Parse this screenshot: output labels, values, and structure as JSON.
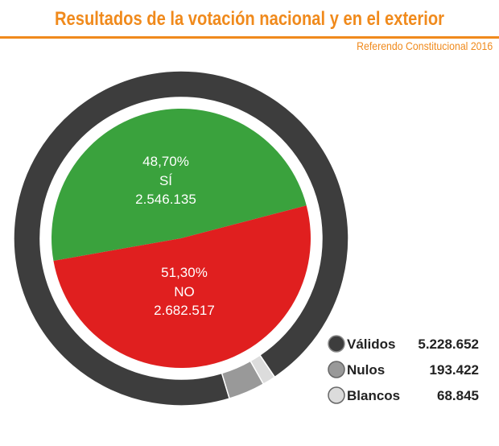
{
  "header": {
    "title": "Resultados de la votación nacional y en el exterior",
    "subtitle": "Referendo Constitucional 2016"
  },
  "colors": {
    "accent": "#f08a1c",
    "si": "#3aa23d",
    "no": "#e01f1f",
    "validos": "#3d3d3d",
    "nulos": "#999999",
    "blancos": "#dcdcdc"
  },
  "chart_data": [
    {
      "type": "pie",
      "series": [
        {
          "name": "Válidos",
          "value": 5228652,
          "label": "5.228.652",
          "color": "#3d3d3d"
        },
        {
          "name": "Nulos",
          "value": 193422,
          "label": "193.422",
          "color": "#999999"
        },
        {
          "name": "Blancos",
          "value": 68845,
          "label": "68.845",
          "color": "#dcdcdc"
        }
      ],
      "legend_position": "bottom-right"
    },
    {
      "type": "pie",
      "slices": [
        {
          "name": "SÍ",
          "percent": 48.7,
          "percent_label": "48,70%",
          "votes": 2546135,
          "votes_label": "2.546.135",
          "color": "#3aa23d"
        },
        {
          "name": "NO",
          "percent": 51.3,
          "percent_label": "51,30%",
          "votes": 2682517,
          "votes_label": "2.682.517",
          "color": "#e01f1f"
        }
      ]
    }
  ]
}
